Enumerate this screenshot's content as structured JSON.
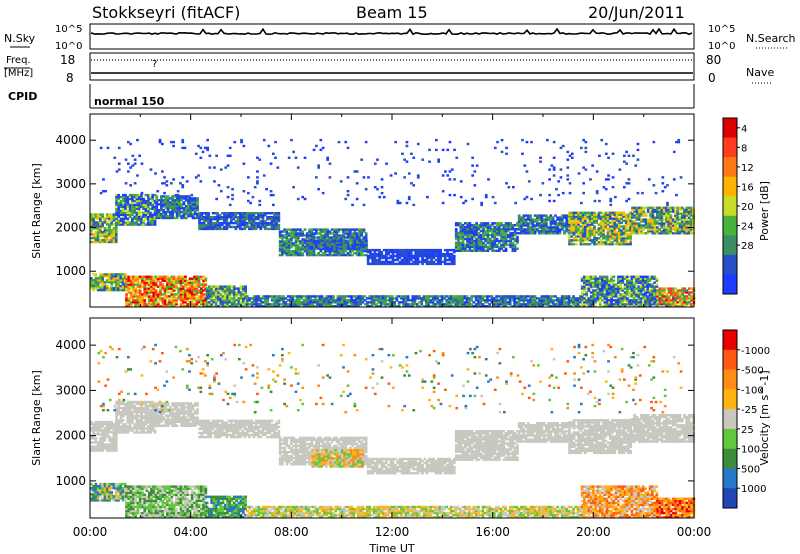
{
  "header": {
    "station": "Stokkseyri (fitACF)",
    "beam": "Beam 15",
    "date": "20/Jun/2011"
  },
  "strip_nsky": {
    "left_label": "N.Sky",
    "right_label": "N.Search",
    "left_top": "10^5",
    "left_bottom": "10^0",
    "right_top": "10^5",
    "right_bottom": "10^0"
  },
  "strip_freq": {
    "left_label_1": "Freq.",
    "left_label_2": "[MHz]",
    "left_top": "18",
    "left_bottom": "8",
    "right_label": "Nave",
    "right_top": "80",
    "right_bottom": "0",
    "question_mark": "?"
  },
  "strip_cpid": {
    "label": "CPID",
    "mode": "normal 150"
  },
  "chart_data": [
    {
      "type": "heatmap",
      "name": "power",
      "ylabel": "Slant Range [km]",
      "ylim": [
        180,
        4600
      ],
      "yticks": [
        1000,
        2000,
        3000,
        4000
      ],
      "xlim": [
        0,
        24
      ],
      "colorbar_label": "Power [dB]",
      "colorbar_ticks": [
        "4",
        "8",
        "12",
        "16",
        "20",
        "24",
        "28"
      ],
      "colorbar_colors": [
        "#1e3cff",
        "#2850c8",
        "#3c8c64",
        "#46b43c",
        "#c8dc28",
        "#ffb400",
        "#ff7814",
        "#ff3c1e",
        "#dc0000"
      ],
      "bands": [
        {
          "t0": 0.0,
          "t1": 1.0,
          "r0": 1650,
          "r1": 2300,
          "c": [
            1,
            5
          ]
        },
        {
          "t0": 1.0,
          "t1": 2.6,
          "r0": 2050,
          "r1": 2750,
          "c": [
            0,
            4
          ]
        },
        {
          "t0": 2.6,
          "t1": 4.3,
          "r0": 2200,
          "r1": 2700,
          "c": [
            0,
            3
          ]
        },
        {
          "t0": 4.3,
          "t1": 7.5,
          "r0": 1950,
          "r1": 2350,
          "c": [
            0,
            2
          ]
        },
        {
          "t0": 7.5,
          "t1": 11.0,
          "r0": 1350,
          "r1": 1950,
          "c": [
            0,
            3
          ]
        },
        {
          "t0": 8.5,
          "t1": 11.0,
          "r0": 1500,
          "r1": 1700,
          "c": [
            0,
            2
          ]
        },
        {
          "t0": 11.0,
          "t1": 14.5,
          "r0": 1150,
          "r1": 1500,
          "c": [
            0,
            1
          ]
        },
        {
          "t0": 14.5,
          "t1": 17.0,
          "r0": 1450,
          "r1": 2100,
          "c": [
            0,
            3
          ]
        },
        {
          "t0": 17.0,
          "t1": 19.0,
          "r0": 1850,
          "r1": 2300,
          "c": [
            0,
            3
          ]
        },
        {
          "t0": 19.0,
          "t1": 21.5,
          "r0": 1600,
          "r1": 2350,
          "c": [
            1,
            5
          ]
        },
        {
          "t0": 21.5,
          "t1": 24.0,
          "r0": 1850,
          "r1": 2450,
          "c": [
            1,
            5
          ]
        },
        {
          "t0": 0.0,
          "t1": 1.4,
          "r0": 550,
          "r1": 950,
          "c": [
            1,
            5
          ]
        },
        {
          "t0": 1.4,
          "t1": 4.6,
          "r0": 180,
          "r1": 900,
          "c": [
            3,
            8
          ]
        },
        {
          "t0": 4.6,
          "t1": 6.2,
          "r0": 180,
          "r1": 650,
          "c": [
            1,
            4
          ]
        },
        {
          "t0": 6.2,
          "t1": 19.5,
          "r0": 180,
          "r1": 450,
          "c": [
            0,
            3
          ]
        },
        {
          "t0": 19.5,
          "t1": 22.5,
          "r0": 180,
          "r1": 900,
          "c": [
            0,
            4
          ]
        },
        {
          "t0": 22.5,
          "t1": 24.0,
          "r0": 180,
          "r1": 600,
          "c": [
            2,
            8
          ]
        },
        {
          "t0": 0.3,
          "t1": 23.5,
          "r0": 2500,
          "r1": 4000,
          "c": [
            0,
            1
          ],
          "d": 0.04
        }
      ]
    },
    {
      "type": "heatmap",
      "name": "velocity",
      "ylabel": "Slant Range [km]",
      "ylim": [
        180,
        4600
      ],
      "yticks": [
        1000,
        2000,
        3000,
        4000
      ],
      "xlim": [
        0,
        24
      ],
      "xticks": [
        "00:00",
        "04:00",
        "08:00",
        "12:00",
        "16:00",
        "20:00",
        "00:00"
      ],
      "xlabel": "Time UT",
      "colorbar_label": "Velocity [m s^-1]",
      "colorbar_ticks": [
        "1000",
        "500",
        "100",
        "25",
        "-25",
        "-100",
        "-500",
        "-1000"
      ],
      "colorbar_colors": [
        "#1e46b4",
        "#2878c8",
        "#3c8c3c",
        "#64c83c",
        "#c8c8c0",
        "#ffb414",
        "#ff8c14",
        "#ff5a14",
        "#e60000"
      ],
      "bands": [
        {
          "t0": 0.0,
          "t1": 1.0,
          "r0": 1650,
          "r1": 2300,
          "c": [
            4,
            4
          ]
        },
        {
          "t0": 1.0,
          "t1": 2.6,
          "r0": 2050,
          "r1": 2750,
          "c": [
            4,
            4
          ]
        },
        {
          "t0": 2.6,
          "t1": 4.3,
          "r0": 2200,
          "r1": 2700,
          "c": [
            4,
            4
          ]
        },
        {
          "t0": 4.3,
          "t1": 7.5,
          "r0": 1950,
          "r1": 2350,
          "c": [
            4,
            4
          ]
        },
        {
          "t0": 7.5,
          "t1": 11.0,
          "r0": 1350,
          "r1": 1950,
          "c": [
            4,
            4
          ]
        },
        {
          "t0": 8.8,
          "t1": 10.8,
          "r0": 1300,
          "r1": 1700,
          "c": [
            3,
            6
          ]
        },
        {
          "t0": 11.0,
          "t1": 14.5,
          "r0": 1150,
          "r1": 1500,
          "c": [
            4,
            4
          ]
        },
        {
          "t0": 14.5,
          "t1": 17.0,
          "r0": 1450,
          "r1": 2100,
          "c": [
            4,
            4
          ]
        },
        {
          "t0": 17.0,
          "t1": 19.0,
          "r0": 1850,
          "r1": 2300,
          "c": [
            4,
            4
          ]
        },
        {
          "t0": 19.0,
          "t1": 21.5,
          "r0": 1600,
          "r1": 2350,
          "c": [
            4,
            4
          ]
        },
        {
          "t0": 21.5,
          "t1": 24.0,
          "r0": 1850,
          "r1": 2450,
          "c": [
            4,
            4
          ]
        },
        {
          "t0": 0.0,
          "t1": 1.4,
          "r0": 550,
          "r1": 950,
          "c": [
            1,
            5
          ]
        },
        {
          "t0": 1.4,
          "t1": 4.6,
          "r0": 180,
          "r1": 900,
          "c": [
            2,
            4
          ]
        },
        {
          "t0": 4.6,
          "t1": 6.2,
          "r0": 180,
          "r1": 650,
          "c": [
            1,
            3
          ]
        },
        {
          "t0": 6.2,
          "t1": 19.5,
          "r0": 180,
          "r1": 450,
          "c": [
            3,
            5
          ]
        },
        {
          "t0": 19.5,
          "t1": 22.5,
          "r0": 180,
          "r1": 900,
          "c": [
            4,
            7
          ]
        },
        {
          "t0": 22.5,
          "t1": 24.0,
          "r0": 180,
          "r1": 600,
          "c": [
            5,
            8
          ]
        },
        {
          "t0": 0.3,
          "t1": 23.5,
          "r0": 2500,
          "r1": 4000,
          "c": [
            1,
            7
          ],
          "d": 0.04
        }
      ]
    }
  ]
}
